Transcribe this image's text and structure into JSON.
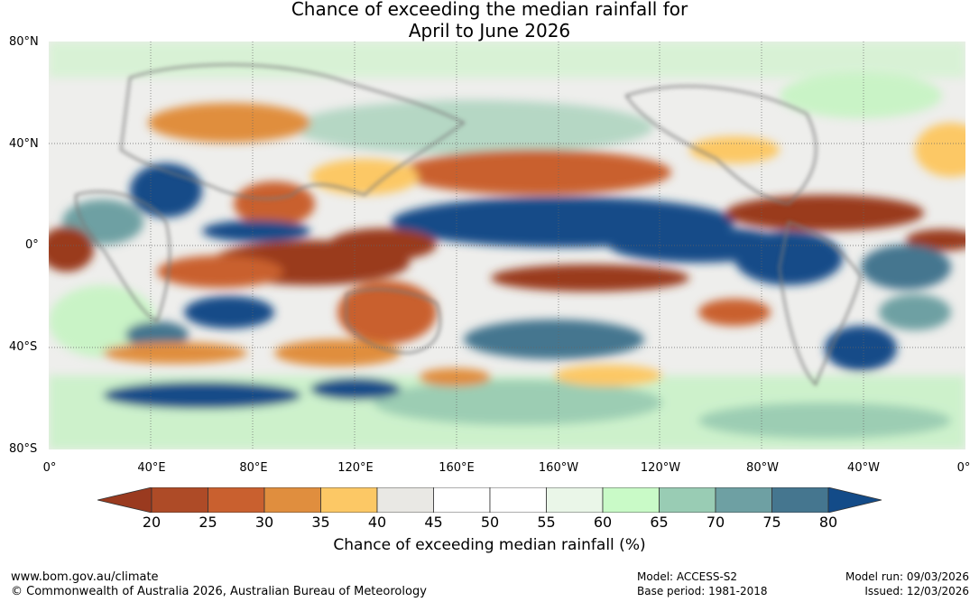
{
  "title": {
    "line1": "Chance of exceeding the median rainfall for",
    "line2": "April to June 2026"
  },
  "map": {
    "lat_labels": [
      "80°N",
      "40°N",
      "0°",
      "40°S",
      "80°S"
    ],
    "lon_labels": [
      "0°",
      "40°E",
      "80°E",
      "120°E",
      "160°E",
      "160°W",
      "120°W",
      "80°W",
      "40°W",
      "0°"
    ]
  },
  "colorbar": {
    "title": "Chance of exceeding median rainfall (%)",
    "ticks": [
      "20",
      "25",
      "30",
      "35",
      "40",
      "45",
      "50",
      "55",
      "60",
      "65",
      "70",
      "75",
      "80"
    ],
    "under_color": "#9a3a1f",
    "over_color": "#134b88",
    "colors": [
      "#ae4b27",
      "#c9602f",
      "#e08e3e",
      "#fcc865",
      "#e9e8e4",
      "#ffffff",
      "#ffffff",
      "#eaf6e8",
      "#c9fac7",
      "#99ccb4",
      "#6ea0a3",
      "#45768f"
    ]
  },
  "footer": {
    "url": "www.bom.gov.au/climate",
    "copyright": "© Commonwealth of Australia 2026, Australian Bureau of Meteorology",
    "model": "Model: ACCESS-S2",
    "base_period": "Base period: 1981-2018",
    "model_run": "Model run: 09/03/2026",
    "issued": "Issued: 12/03/2026"
  }
}
